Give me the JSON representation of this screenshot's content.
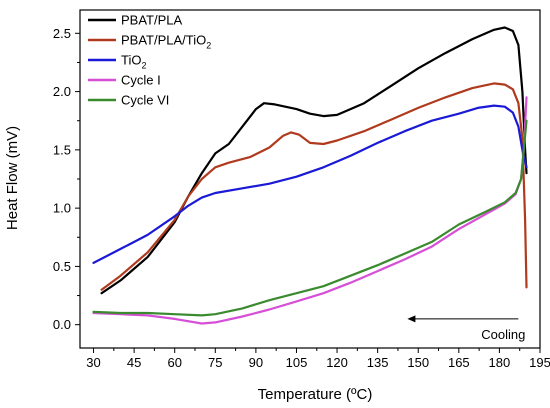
{
  "chart_data": {
    "type": "line",
    "xlabel": "Temperature (ºC)",
    "ylabel": "Heat Flow (mV)",
    "xlim": [
      25,
      195
    ],
    "ylim": [
      -0.2,
      2.7
    ],
    "xticks": [
      30,
      45,
      60,
      75,
      90,
      105,
      120,
      135,
      150,
      165,
      180,
      195
    ],
    "yticks": [
      0.0,
      0.5,
      1.0,
      1.5,
      2.0,
      2.5
    ],
    "ytick_labels": [
      "0.0",
      "0.5",
      "1.0",
      "1.5",
      "2.0",
      "2.5"
    ],
    "legend_position": "top-left",
    "annotation": {
      "text": "Cooling",
      "arrow": "left",
      "x_start": 187,
      "x_end": 146,
      "y": 0.05
    },
    "series": [
      {
        "name": "PBAT/PLA",
        "name_main": "PBAT/PLA",
        "name_sub": "",
        "name_tail": "",
        "color": "#000000",
        "points": [
          [
            33,
            0.27
          ],
          [
            40,
            0.38
          ],
          [
            50,
            0.58
          ],
          [
            60,
            0.88
          ],
          [
            65,
            1.1
          ],
          [
            70,
            1.3
          ],
          [
            75,
            1.47
          ],
          [
            80,
            1.55
          ],
          [
            85,
            1.7
          ],
          [
            90,
            1.85
          ],
          [
            93,
            1.9
          ],
          [
            97,
            1.89
          ],
          [
            105,
            1.85
          ],
          [
            110,
            1.81
          ],
          [
            115,
            1.79
          ],
          [
            120,
            1.8
          ],
          [
            130,
            1.9
          ],
          [
            140,
            2.05
          ],
          [
            150,
            2.2
          ],
          [
            160,
            2.33
          ],
          [
            170,
            2.45
          ],
          [
            178,
            2.53
          ],
          [
            182,
            2.55
          ],
          [
            185,
            2.52
          ],
          [
            187,
            2.4
          ],
          [
            188.5,
            2.0
          ],
          [
            189.5,
            1.5
          ],
          [
            190,
            1.3
          ]
        ]
      },
      {
        "name": "PBAT/PLA/TiO2",
        "name_main": "PBAT/PLA/TiO",
        "name_sub": "2",
        "name_tail": "",
        "color": "#b03a1e",
        "points": [
          [
            33,
            0.3
          ],
          [
            40,
            0.42
          ],
          [
            50,
            0.62
          ],
          [
            60,
            0.9
          ],
          [
            65,
            1.1
          ],
          [
            70,
            1.25
          ],
          [
            75,
            1.35
          ],
          [
            80,
            1.39
          ],
          [
            88,
            1.44
          ],
          [
            95,
            1.52
          ],
          [
            100,
            1.62
          ],
          [
            103,
            1.65
          ],
          [
            106,
            1.63
          ],
          [
            110,
            1.56
          ],
          [
            115,
            1.55
          ],
          [
            120,
            1.58
          ],
          [
            130,
            1.66
          ],
          [
            140,
            1.76
          ],
          [
            150,
            1.86
          ],
          [
            160,
            1.95
          ],
          [
            170,
            2.03
          ],
          [
            178,
            2.07
          ],
          [
            182,
            2.06
          ],
          [
            185,
            2.02
          ],
          [
            187,
            1.9
          ],
          [
            188.5,
            1.6
          ],
          [
            189.5,
            0.9
          ],
          [
            190,
            0.32
          ]
        ]
      },
      {
        "name": "TiO2",
        "name_main": "TiO",
        "name_sub": "2",
        "name_tail": "",
        "color": "#1a1ad6",
        "points": [
          [
            30,
            0.53
          ],
          [
            40,
            0.65
          ],
          [
            50,
            0.77
          ],
          [
            60,
            0.93
          ],
          [
            65,
            1.02
          ],
          [
            70,
            1.09
          ],
          [
            75,
            1.13
          ],
          [
            85,
            1.17
          ],
          [
            95,
            1.21
          ],
          [
            105,
            1.27
          ],
          [
            115,
            1.35
          ],
          [
            125,
            1.45
          ],
          [
            135,
            1.56
          ],
          [
            145,
            1.66
          ],
          [
            155,
            1.75
          ],
          [
            165,
            1.81
          ],
          [
            172,
            1.86
          ],
          [
            178,
            1.88
          ],
          [
            182,
            1.87
          ],
          [
            185,
            1.82
          ],
          [
            187,
            1.7
          ],
          [
            188.5,
            1.5
          ],
          [
            190,
            1.35
          ]
        ]
      },
      {
        "name": "Cycle I",
        "name_main": "Cycle I",
        "name_sub": "",
        "name_tail": "",
        "color": "#d64fd6",
        "points": [
          [
            30,
            0.1
          ],
          [
            40,
            0.09
          ],
          [
            50,
            0.08
          ],
          [
            60,
            0.05
          ],
          [
            70,
            0.01
          ],
          [
            75,
            0.02
          ],
          [
            85,
            0.07
          ],
          [
            95,
            0.13
          ],
          [
            105,
            0.2
          ],
          [
            115,
            0.27
          ],
          [
            125,
            0.36
          ],
          [
            135,
            0.46
          ],
          [
            145,
            0.56
          ],
          [
            155,
            0.67
          ],
          [
            165,
            0.82
          ],
          [
            175,
            0.95
          ],
          [
            182,
            1.04
          ],
          [
            186,
            1.12
          ],
          [
            188,
            1.25
          ],
          [
            189,
            1.5
          ],
          [
            190,
            1.95
          ]
        ]
      },
      {
        "name": "Cycle VI",
        "name_main": "Cycle VI",
        "name_sub": "",
        "name_tail": "",
        "color": "#3a8a2e",
        "points": [
          [
            30,
            0.11
          ],
          [
            40,
            0.1
          ],
          [
            50,
            0.1
          ],
          [
            60,
            0.09
          ],
          [
            70,
            0.08
          ],
          [
            75,
            0.09
          ],
          [
            85,
            0.14
          ],
          [
            95,
            0.21
          ],
          [
            105,
            0.27
          ],
          [
            115,
            0.33
          ],
          [
            125,
            0.42
          ],
          [
            135,
            0.51
          ],
          [
            145,
            0.61
          ],
          [
            155,
            0.71
          ],
          [
            165,
            0.86
          ],
          [
            175,
            0.97
          ],
          [
            182,
            1.05
          ],
          [
            186,
            1.13
          ],
          [
            188,
            1.25
          ],
          [
            189,
            1.5
          ],
          [
            190,
            1.75
          ]
        ]
      }
    ]
  }
}
